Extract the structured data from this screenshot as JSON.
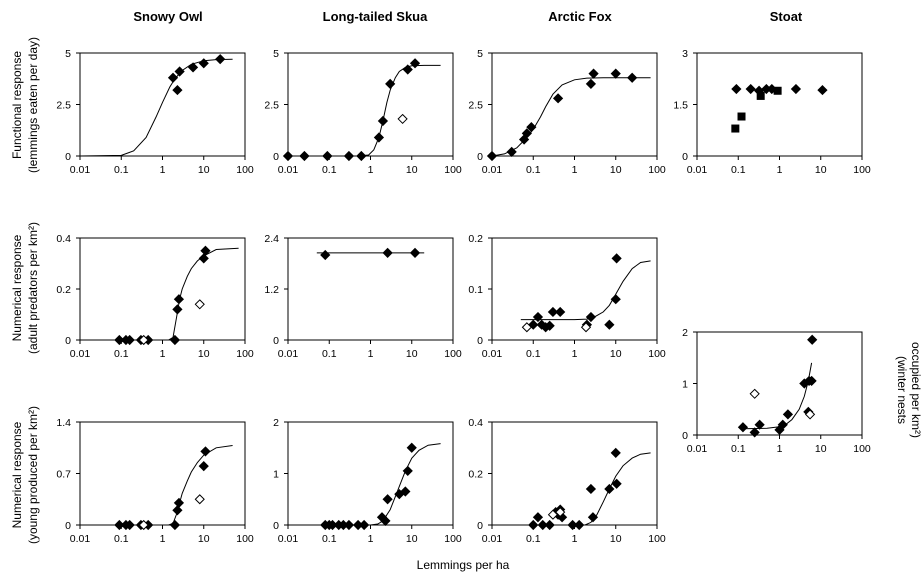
{
  "figure": {
    "x_axis_label": "Lemmings per ha",
    "column_titles": [
      "Snowy Owl",
      "Long-tailed Skua",
      "Arctic Fox",
      "Stoat"
    ],
    "row_labels": [
      [
        "Functional response",
        "(lemmings eaten per day)"
      ],
      [
        "Numerical response",
        "(adult predators per km²)"
      ],
      [
        "Numerical response",
        "(young produced per km²)"
      ]
    ],
    "stoat_right_label": [
      "(winter nests",
      "occupied per km²)"
    ]
  },
  "chart_data": [
    {
      "id": "owl-functional",
      "type": "scatter",
      "row": 0,
      "col": 0,
      "title": "Snowy Owl",
      "xlabel": "",
      "ylabel": "Functional response (lemmings eaten per day)",
      "xscale": "log",
      "xlim": [
        0.01,
        100
      ],
      "ylim": [
        0,
        5
      ],
      "xticks": [
        "0.01",
        "0.1",
        "1",
        "10",
        "100"
      ],
      "yticks": [
        "0",
        "2.5",
        "5"
      ],
      "points": [
        [
          1.8,
          3.8
        ],
        [
          2.3,
          3.2
        ],
        [
          2.6,
          4.1
        ],
        [
          5.5,
          4.3
        ],
        [
          10,
          4.5
        ],
        [
          25,
          4.7
        ]
      ],
      "open_points": [],
      "square_points": [],
      "curve": {
        "xs": [
          0.01,
          0.1,
          0.2,
          0.4,
          0.7,
          1,
          1.5,
          2,
          3,
          5,
          10,
          20,
          50
        ],
        "ys": [
          0,
          0.03,
          0.25,
          0.9,
          1.9,
          2.6,
          3.35,
          3.75,
          4.15,
          4.45,
          4.62,
          4.68,
          4.7
        ]
      }
    },
    {
      "id": "skua-functional",
      "type": "scatter",
      "row": 0,
      "col": 1,
      "title": "Long-tailed Skua",
      "xlabel": "",
      "ylabel": "",
      "xscale": "log",
      "xlim": [
        0.01,
        100
      ],
      "ylim": [
        0,
        5
      ],
      "xticks": [
        "0.01",
        "0.1",
        "1",
        "10",
        "100"
      ],
      "yticks": [
        "0",
        "2.5",
        "5"
      ],
      "points": [
        [
          0.01,
          0
        ],
        [
          0.025,
          0
        ],
        [
          0.09,
          0
        ],
        [
          0.3,
          0
        ],
        [
          0.6,
          0
        ],
        [
          1.6,
          0.9
        ],
        [
          2,
          1.7
        ],
        [
          3,
          3.5
        ],
        [
          8,
          4.2
        ],
        [
          12,
          4.5
        ]
      ],
      "open_points": [
        [
          6,
          1.8
        ]
      ],
      "square_points": [],
      "curve": {
        "xs": [
          0.01,
          0.5,
          0.9,
          1.2,
          1.6,
          2,
          2.5,
          3,
          4,
          5,
          7,
          10,
          20,
          50
        ],
        "ys": [
          0,
          0,
          0.05,
          0.3,
          0.9,
          1.7,
          2.6,
          3.2,
          3.8,
          4.1,
          4.3,
          4.38,
          4.4,
          4.4
        ]
      }
    },
    {
      "id": "fox-functional",
      "type": "scatter",
      "row": 0,
      "col": 2,
      "title": "Arctic Fox",
      "xlabel": "",
      "ylabel": "",
      "xscale": "log",
      "xlim": [
        0.01,
        100
      ],
      "ylim": [
        0,
        5
      ],
      "xticks": [
        "0.01",
        "0.1",
        "1",
        "10",
        "100"
      ],
      "yticks": [
        "0",
        "2.5",
        "5"
      ],
      "points": [
        [
          0.01,
          0
        ],
        [
          0.03,
          0.2
        ],
        [
          0.06,
          0.8
        ],
        [
          0.07,
          1.1
        ],
        [
          0.09,
          1.4
        ],
        [
          0.4,
          2.8
        ],
        [
          2.5,
          3.5
        ],
        [
          2.9,
          4
        ],
        [
          10,
          4
        ],
        [
          25,
          3.8
        ]
      ],
      "open_points": [],
      "square_points": [],
      "curve": {
        "xs": [
          0.01,
          0.02,
          0.04,
          0.07,
          0.1,
          0.15,
          0.2,
          0.3,
          0.5,
          1,
          2,
          5,
          20,
          70
        ],
        "ys": [
          0,
          0.1,
          0.4,
          0.9,
          1.3,
          1.9,
          2.4,
          3,
          3.45,
          3.7,
          3.78,
          3.8,
          3.8,
          3.8
        ]
      }
    },
    {
      "id": "stoat-functional",
      "type": "scatter",
      "row": 0,
      "col": 3,
      "title": "Stoat",
      "xlabel": "",
      "ylabel": "",
      "xscale": "log",
      "xlim": [
        0.01,
        100
      ],
      "ylim": [
        0,
        3
      ],
      "xticks": [
        "0.01",
        "0.1",
        "1",
        "10",
        "100"
      ],
      "yticks": [
        "0",
        "1.5",
        "3"
      ],
      "points": [
        [
          0.09,
          1.95
        ],
        [
          0.2,
          1.95
        ],
        [
          0.32,
          1.9
        ],
        [
          0.48,
          1.95
        ],
        [
          0.65,
          1.95
        ],
        [
          2.5,
          1.95
        ],
        [
          11,
          1.92
        ]
      ],
      "open_points": [],
      "square_points": [
        [
          0.085,
          0.8
        ],
        [
          0.12,
          1.15
        ],
        [
          0.35,
          1.75
        ],
        [
          0.9,
          1.9
        ]
      ],
      "curve": null
    },
    {
      "id": "owl-numerical-adults",
      "type": "scatter",
      "row": 1,
      "col": 0,
      "title": "",
      "xlabel": "",
      "ylabel": "Numerical response (adult predators per km²)",
      "xscale": "log",
      "xlim": [
        0.01,
        100
      ],
      "ylim": [
        0,
        0.4
      ],
      "xticks": [
        "0.01",
        "0.1",
        "1",
        "10",
        "100"
      ],
      "yticks": [
        "0",
        "0.2",
        "0.4"
      ],
      "points": [
        [
          0.09,
          0
        ],
        [
          0.13,
          0
        ],
        [
          0.16,
          0
        ],
        [
          0.3,
          0
        ],
        [
          0.45,
          0
        ],
        [
          2,
          0
        ],
        [
          2.3,
          0.12
        ],
        [
          2.5,
          0.16
        ],
        [
          10,
          0.32
        ],
        [
          11,
          0.35
        ]
      ],
      "open_points": [
        [
          0.35,
          0
        ],
        [
          8,
          0.14
        ]
      ],
      "square_points": [],
      "curve": {
        "xs": [
          0.01,
          1.4,
          1.8,
          2.2,
          2.6,
          3,
          4,
          5,
          7,
          10,
          20,
          70
        ],
        "ys": [
          0,
          0,
          0.01,
          0.09,
          0.16,
          0.2,
          0.25,
          0.28,
          0.31,
          0.33,
          0.355,
          0.36
        ]
      }
    },
    {
      "id": "skua-numerical-adults",
      "type": "scatter",
      "row": 1,
      "col": 1,
      "title": "",
      "xlabel": "",
      "ylabel": "",
      "xscale": "log",
      "xlim": [
        0.01,
        100
      ],
      "ylim": [
        0,
        2.4
      ],
      "xticks": [
        "0.01",
        "0.1",
        "1",
        "10",
        "100"
      ],
      "yticks": [
        "0",
        "1.2",
        "2.4"
      ],
      "points": [
        [
          0.08,
          2
        ],
        [
          2.6,
          2.05
        ],
        [
          12,
          2.05
        ]
      ],
      "open_points": [],
      "square_points": [],
      "curve": {
        "xs": [
          0.05,
          20
        ],
        "ys": [
          2.05,
          2.05
        ]
      }
    },
    {
      "id": "fox-numerical-adults",
      "type": "scatter",
      "row": 1,
      "col": 2,
      "title": "",
      "xlabel": "",
      "ylabel": "",
      "xscale": "log",
      "xlim": [
        0.01,
        100
      ],
      "ylim": [
        0,
        0.2
      ],
      "xticks": [
        "0.01",
        "0.1",
        "1",
        "10",
        "100"
      ],
      "yticks": [
        "0",
        "0.1",
        "0.2"
      ],
      "points": [
        [
          0.1,
          0.03
        ],
        [
          0.13,
          0.045
        ],
        [
          0.16,
          0.03
        ],
        [
          0.2,
          0.025
        ],
        [
          0.25,
          0.028
        ],
        [
          0.3,
          0.055
        ],
        [
          0.45,
          0.055
        ],
        [
          2,
          0.03
        ],
        [
          2.5,
          0.045
        ],
        [
          7,
          0.03
        ],
        [
          10,
          0.08
        ],
        [
          10.5,
          0.16
        ]
      ],
      "open_points": [
        [
          0.07,
          0.025
        ],
        [
          1.9,
          0.025
        ]
      ],
      "square_points": [],
      "curve": {
        "xs": [
          0.05,
          1,
          2,
          3,
          5,
          7,
          10,
          15,
          25,
          40,
          70
        ],
        "ys": [
          0.04,
          0.04,
          0.041,
          0.045,
          0.055,
          0.068,
          0.09,
          0.115,
          0.14,
          0.152,
          0.155
        ]
      }
    },
    {
      "id": "owl-numerical-young",
      "type": "scatter",
      "row": 2,
      "col": 0,
      "title": "",
      "xlabel": "",
      "ylabel": "Numerical response (young produced per km²)",
      "xscale": "log",
      "xlim": [
        0.01,
        100
      ],
      "ylim": [
        0,
        1.4
      ],
      "xticks": [
        "0.01",
        "0.1",
        "1",
        "10",
        "100"
      ],
      "yticks": [
        "0",
        "0.7",
        "1.4"
      ],
      "points": [
        [
          0.09,
          0
        ],
        [
          0.13,
          0
        ],
        [
          0.16,
          0
        ],
        [
          0.3,
          0
        ],
        [
          0.45,
          0
        ],
        [
          2,
          0
        ],
        [
          2.3,
          0.2
        ],
        [
          2.5,
          0.3
        ],
        [
          10,
          0.8
        ],
        [
          11,
          1
        ]
      ],
      "open_points": [
        [
          0.35,
          0
        ],
        [
          8,
          0.35
        ]
      ],
      "square_points": [],
      "curve": {
        "xs": [
          0.01,
          1.4,
          1.8,
          2.2,
          2.6,
          3,
          4,
          5,
          7,
          10,
          20,
          50
        ],
        "ys": [
          0,
          0,
          0.02,
          0.15,
          0.3,
          0.43,
          0.6,
          0.72,
          0.85,
          0.95,
          1.05,
          1.08
        ]
      }
    },
    {
      "id": "skua-numerical-young",
      "type": "scatter",
      "row": 2,
      "col": 1,
      "title": "",
      "xlabel": "",
      "ylabel": "",
      "xscale": "log",
      "xlim": [
        0.01,
        100
      ],
      "ylim": [
        0,
        2
      ],
      "xticks": [
        "0.01",
        "0.1",
        "1",
        "10",
        "100"
      ],
      "yticks": [
        "0",
        "1",
        "2"
      ],
      "points": [
        [
          0.08,
          0
        ],
        [
          0.1,
          0
        ],
        [
          0.12,
          0
        ],
        [
          0.17,
          0
        ],
        [
          0.22,
          0
        ],
        [
          0.3,
          0
        ],
        [
          0.5,
          0
        ],
        [
          0.7,
          0
        ],
        [
          1.9,
          0.15
        ],
        [
          2.3,
          0.08
        ],
        [
          2.6,
          0.5
        ],
        [
          5,
          0.6
        ],
        [
          7,
          0.65
        ],
        [
          8,
          1.05
        ],
        [
          10,
          1.5
        ]
      ],
      "open_points": [],
      "square_points": [],
      "curve": {
        "xs": [
          0.01,
          1,
          1.5,
          2,
          3,
          4,
          5,
          7,
          10,
          15,
          25,
          50
        ],
        "ys": [
          0,
          0,
          0.02,
          0.08,
          0.3,
          0.55,
          0.75,
          1.05,
          1.3,
          1.45,
          1.55,
          1.58
        ]
      }
    },
    {
      "id": "fox-numerical-young",
      "type": "scatter",
      "row": 2,
      "col": 2,
      "title": "",
      "xlabel": "",
      "ylabel": "",
      "xscale": "log",
      "xlim": [
        0.01,
        100
      ],
      "ylim": [
        0,
        0.4
      ],
      "xticks": [
        "0.01",
        "0.1",
        "1",
        "10",
        "100"
      ],
      "yticks": [
        "0",
        "0.2",
        "0.4"
      ],
      "points": [
        [
          0.1,
          0
        ],
        [
          0.13,
          0.03
        ],
        [
          0.17,
          0
        ],
        [
          0.25,
          0
        ],
        [
          0.35,
          0.05
        ],
        [
          0.4,
          0.04
        ],
        [
          0.45,
          0.06
        ],
        [
          0.5,
          0.03
        ],
        [
          0.9,
          0
        ],
        [
          1.3,
          0
        ],
        [
          2.5,
          0.14
        ],
        [
          2.8,
          0.03
        ],
        [
          7,
          0.14
        ],
        [
          10,
          0.28
        ],
        [
          10.5,
          0.16
        ]
      ],
      "open_points": [
        [
          0.3,
          0.04
        ],
        [
          0.45,
          0.05
        ]
      ],
      "square_points": [],
      "curve": {
        "xs": [
          0.01,
          1.8,
          2.5,
          3.5,
          5,
          7,
          10,
          15,
          25,
          40,
          70
        ],
        "ys": [
          0,
          0,
          0.01,
          0.04,
          0.09,
          0.14,
          0.19,
          0.23,
          0.26,
          0.275,
          0.28
        ]
      }
    },
    {
      "id": "stoat-numerical",
      "type": "scatter",
      "row": 2,
      "col": 3,
      "title": "",
      "xlabel": "",
      "ylabel": "(winter nests occupied per km²)",
      "xscale": "log",
      "xlim": [
        0.01,
        100
      ],
      "ylim": [
        0,
        2
      ],
      "xticks": [
        "0.01",
        "0.1",
        "1",
        "10",
        "100"
      ],
      "yticks": [
        "0",
        "1",
        "2"
      ],
      "points": [
        [
          0.13,
          0.15
        ],
        [
          0.25,
          0.05
        ],
        [
          0.33,
          0.2
        ],
        [
          1,
          0.1
        ],
        [
          1.2,
          0.2
        ],
        [
          1.6,
          0.4
        ],
        [
          4,
          1
        ],
        [
          5,
          0.45
        ],
        [
          5.2,
          1.05
        ],
        [
          6,
          1.05
        ],
        [
          6.2,
          1.85
        ]
      ],
      "open_points": [
        [
          0.25,
          0.8
        ],
        [
          5.5,
          0.4
        ]
      ],
      "square_points": [],
      "curve": {
        "xs": [
          0.13,
          0.5,
          1,
          1.5,
          2,
          3,
          4,
          5,
          6
        ],
        "ys": [
          0.12,
          0.13,
          0.16,
          0.22,
          0.3,
          0.5,
          0.75,
          1.05,
          1.4
        ]
      }
    }
  ]
}
